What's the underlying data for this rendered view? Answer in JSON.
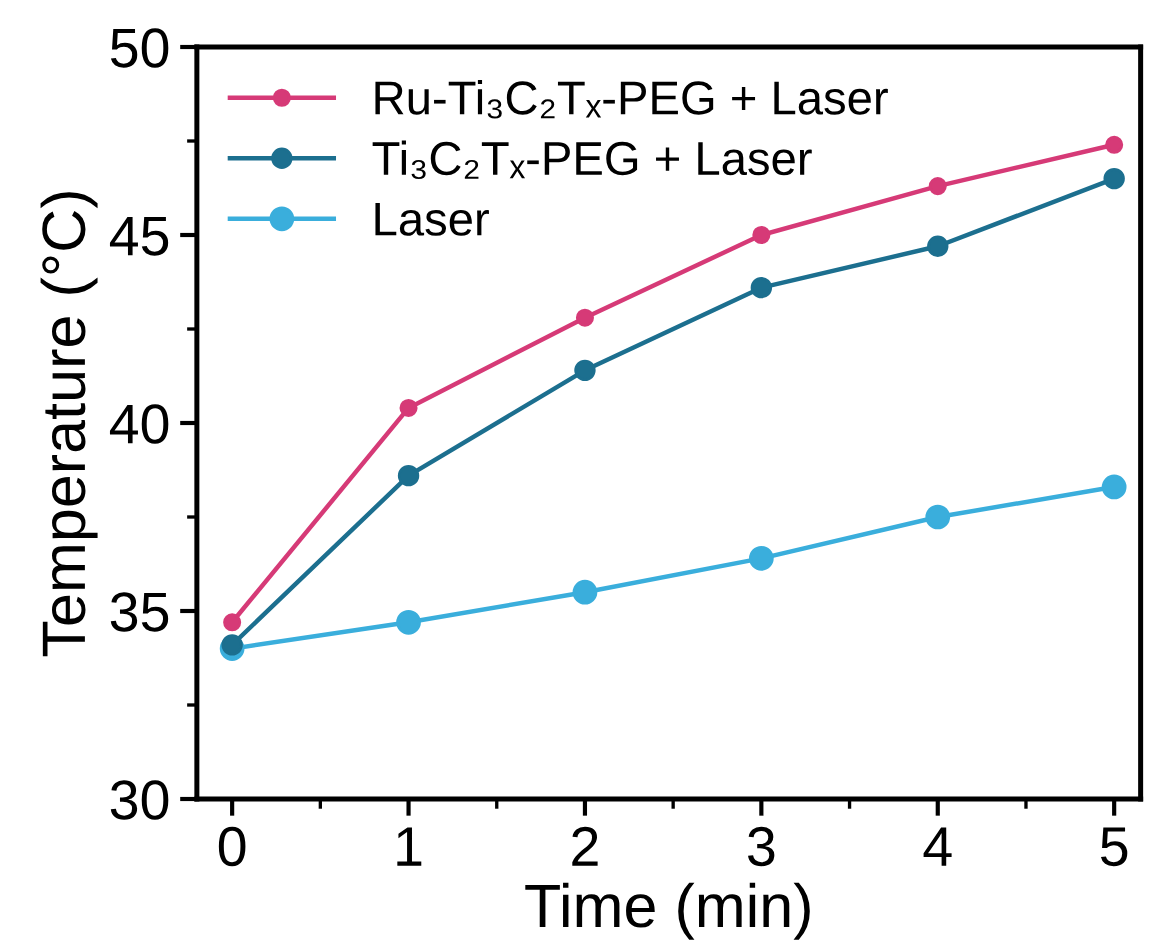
{
  "chart_data": {
    "type": "line",
    "xlabel": "Time (min)",
    "ylabel": "Temperature (°C)",
    "x": [
      0,
      1,
      2,
      3,
      4,
      5
    ],
    "series": [
      {
        "name": "Ru-Ti₃C₂Tₓ-PEG + Laser",
        "color": "#d63a77",
        "values": [
          34.7,
          40.4,
          42.8,
          45.0,
          46.3,
          47.4
        ]
      },
      {
        "name": "Ti₃C₂Tₓ-PEG + Laser",
        "color": "#1c6f8f",
        "values": [
          34.1,
          38.6,
          41.4,
          43.6,
          44.7,
          46.5
        ]
      },
      {
        "name": "Laser",
        "color": "#3aaedc",
        "values": [
          34.0,
          34.7,
          35.5,
          36.4,
          37.5,
          38.3
        ]
      }
    ],
    "xlim": [
      -0.2,
      5.15
    ],
    "ylim": [
      30,
      50
    ],
    "xticks": [
      0,
      1,
      2,
      3,
      4,
      5
    ],
    "yticks": [
      30,
      35,
      40,
      45,
      50
    ],
    "marker": "circle",
    "line_style": "solid",
    "legend": "top left",
    "grid": false
  }
}
